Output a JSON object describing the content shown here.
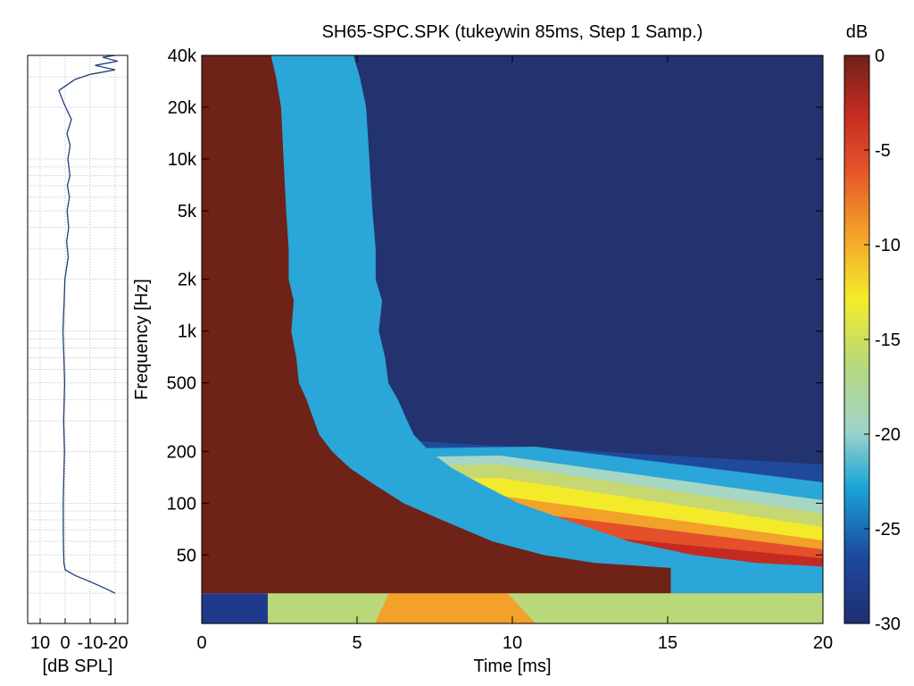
{
  "chart_data": [
    {
      "type": "line",
      "panel": "side-frequency-response",
      "title": "",
      "xlabel": "[dB SPL]",
      "ylabel": "",
      "x_ticks": [
        "10",
        "0",
        "-10",
        "-20"
      ],
      "xlim": [
        15,
        -25
      ],
      "y_scale": "log",
      "ylim": [
        20,
        40000
      ],
      "grid": true,
      "series": [
        {
          "color": "#1f3f7a",
          "points": [
            [
              -20,
              30
            ],
            [
              -16,
              32
            ],
            [
              -10,
              35
            ],
            [
              -4,
              38
            ],
            [
              0,
              41
            ],
            [
              0.5,
              45
            ],
            [
              0.7,
              60
            ],
            [
              0.8,
              100
            ],
            [
              0.5,
              150
            ],
            [
              0.3,
              200
            ],
            [
              0.6,
              300
            ],
            [
              0.2,
              500
            ],
            [
              0.5,
              700
            ],
            [
              0.9,
              1000
            ],
            [
              0.4,
              1500
            ],
            [
              0.1,
              2000
            ],
            [
              -1.2,
              2700
            ],
            [
              -0.6,
              3300
            ],
            [
              -1.4,
              4000
            ],
            [
              -0.8,
              5000
            ],
            [
              -1.7,
              6000
            ],
            [
              -0.9,
              7000
            ],
            [
              -1.9,
              8000
            ],
            [
              -1.1,
              10000
            ],
            [
              -2.0,
              12000
            ],
            [
              -0.7,
              14000
            ],
            [
              -2.5,
              17000
            ],
            [
              0.5,
              21000
            ],
            [
              2.5,
              25000
            ],
            [
              -4,
              29000
            ],
            [
              -10,
              31000
            ],
            [
              -20,
              33000
            ],
            [
              -12,
              35000
            ],
            [
              -21,
              37000
            ],
            [
              -15,
              39000
            ],
            [
              -20,
              40000
            ]
          ]
        }
      ]
    },
    {
      "type": "heatmap",
      "panel": "spectral-decay",
      "title": "SH65-SPC.SPK (tukeywin 85ms, Step 1 Samp.)",
      "xlabel": "Time [ms]",
      "ylabel": "Frequency [Hz]",
      "xlim": [
        0,
        20
      ],
      "x_ticks": [
        0,
        5,
        10,
        15,
        20
      ],
      "y_scale": "log",
      "ylim": [
        20,
        40000
      ],
      "y_ticks": [
        {
          "value": 50,
          "label": "50"
        },
        {
          "value": 100,
          "label": "100"
        },
        {
          "value": 200,
          "label": "200"
        },
        {
          "value": 500,
          "label": "500"
        },
        {
          "value": 1000,
          "label": "1k"
        },
        {
          "value": 2000,
          "label": "2k"
        },
        {
          "value": 5000,
          "label": "5k"
        },
        {
          "value": 10000,
          "label": "10k"
        },
        {
          "value": 20000,
          "label": "20k"
        },
        {
          "value": 40000,
          "label": "40k"
        }
      ],
      "z_range": [
        -30,
        0
      ],
      "colorbar": {
        "label": "dB",
        "ticks": [
          "0",
          "-5",
          "-10",
          "-15",
          "-20",
          "-25",
          "-30"
        ]
      },
      "decay_contour_ms": [
        [
          20,
          8
        ],
        [
          30,
          20
        ],
        [
          40,
          20
        ],
        [
          42,
          20
        ],
        [
          45,
          17
        ],
        [
          50,
          15
        ],
        [
          60,
          13
        ],
        [
          80,
          11
        ],
        [
          100,
          9.5
        ],
        [
          130,
          8.3
        ],
        [
          160,
          7.4
        ],
        [
          200,
          6.7
        ],
        [
          250,
          6.2
        ],
        [
          300,
          6.0
        ],
        [
          400,
          5.7
        ],
        [
          500,
          5.4
        ],
        [
          700,
          5.3
        ],
        [
          1000,
          5.1
        ],
        [
          1500,
          5.2
        ],
        [
          2000,
          5.0
        ],
        [
          3000,
          5.0
        ],
        [
          5000,
          4.9
        ],
        [
          10000,
          4.8
        ],
        [
          20000,
          4.7
        ],
        [
          30000,
          4.5
        ],
        [
          40000,
          4.3
        ]
      ]
    }
  ]
}
